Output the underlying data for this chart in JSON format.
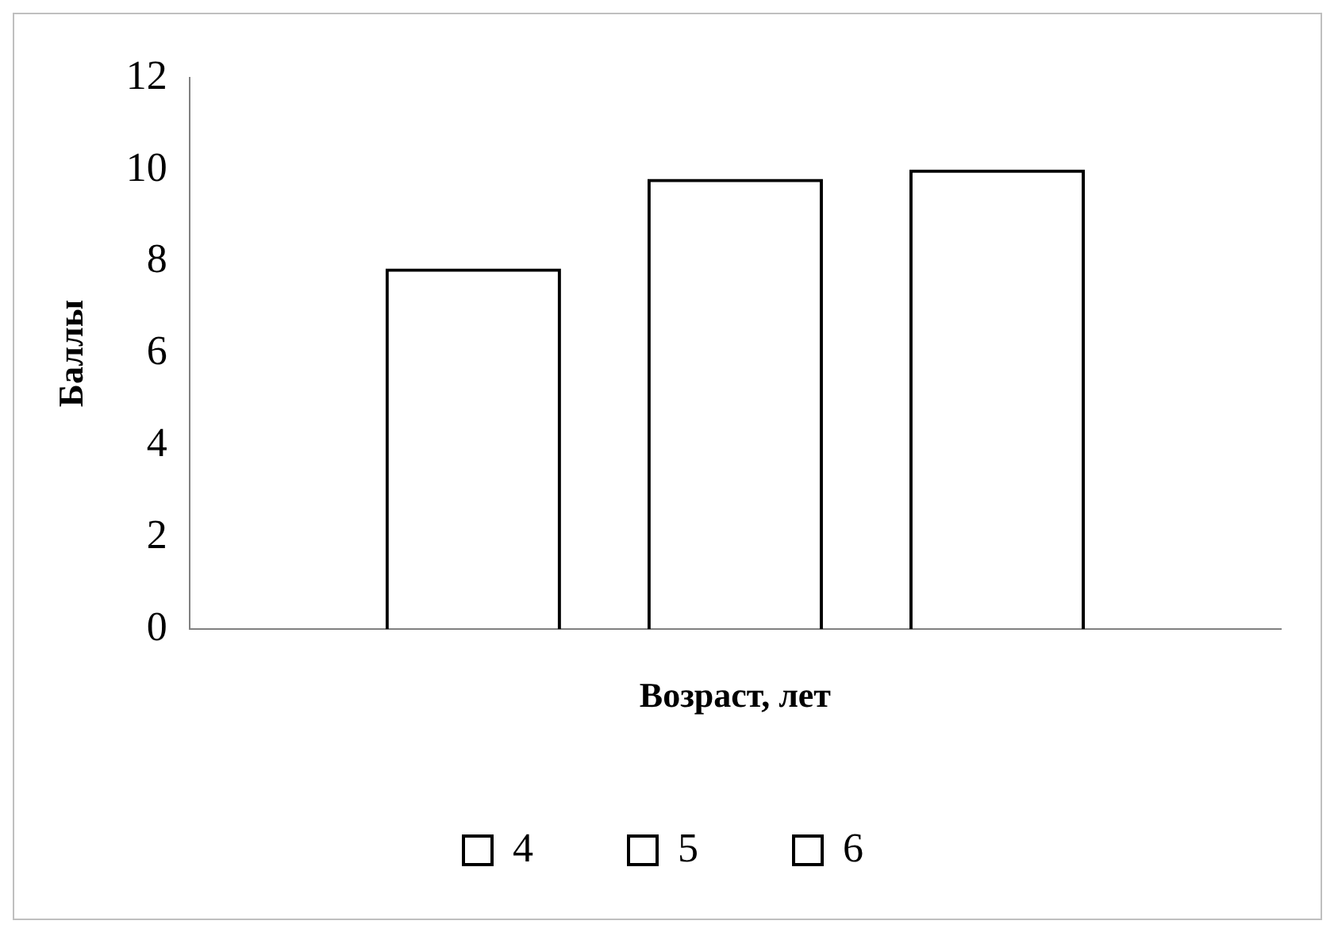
{
  "chart_data": {
    "type": "bar",
    "xlabel": "Возраст, лет",
    "ylabel": "Баллы",
    "categories": [
      null
    ],
    "series": [
      {
        "name": "4",
        "color": "#000000",
        "values": [
          7.85
        ]
      },
      {
        "name": "5",
        "color": "#000000",
        "values": [
          9.8
        ]
      },
      {
        "name": "6",
        "color": "#000000",
        "values": [
          10.0
        ]
      }
    ],
    "ylim": [
      0,
      12
    ],
    "yticks": [
      0,
      2,
      4,
      6,
      8,
      10,
      12
    ],
    "grid": false,
    "legend": "bottom"
  }
}
